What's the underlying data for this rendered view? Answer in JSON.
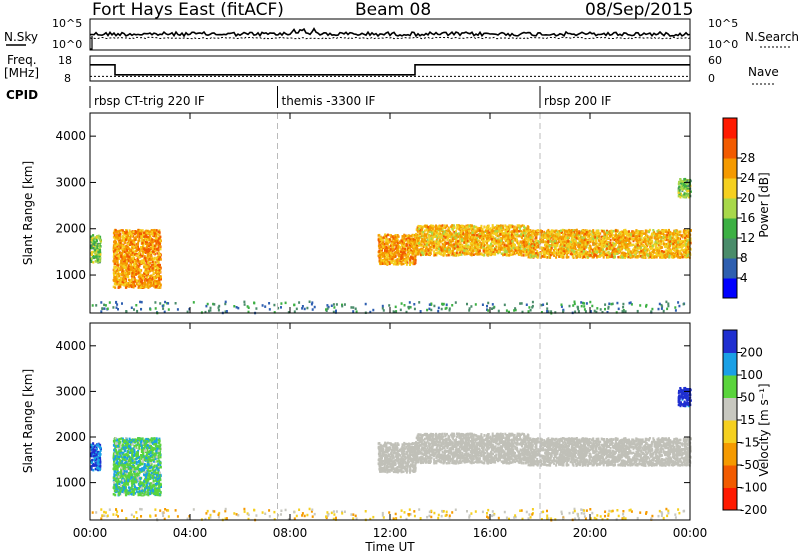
{
  "header": {
    "title": "Fort Hays East (fitACF)",
    "beam": "Beam 08",
    "date": "08/Sep/2015"
  },
  "noise_panel": {
    "left_label": "N.Sky",
    "left_top_tick": "10^5",
    "left_bottom_tick": "10^0",
    "right_top_tick": "10^5",
    "right_bottom_tick": "10^0",
    "right_label": "N.Search"
  },
  "freq_panel": {
    "left_label_line1": "Freq.",
    "left_label_line2": "[MHz]",
    "left_top_tick": "18",
    "left_bottom_tick": "8",
    "right_top_tick": "60",
    "right_bottom_tick": "0",
    "right_label": "Nave"
  },
  "cpid_panel": {
    "label": "CPID",
    "modes": [
      {
        "name": "rbsp CT-trig 220 IF",
        "start_hour": 0.0
      },
      {
        "name": "themis -3300 IF",
        "start_hour": 7.5
      },
      {
        "name": "rbsp 200 IF",
        "start_hour": 18.0
      }
    ]
  },
  "x_axis": {
    "label": "Time UT",
    "ticks": [
      "00:00",
      "04:00",
      "08:00",
      "12:00",
      "16:00",
      "20:00",
      "00:00"
    ],
    "range_hours": [
      0,
      24
    ]
  },
  "power_panel": {
    "ylabel": "Slant Range [km]",
    "yticks": [
      "1000",
      "2000",
      "3000",
      "4000"
    ],
    "colorbar_label": "Power [dB]",
    "colorbar_ticks": [
      "4",
      "8",
      "12",
      "16",
      "20",
      "24",
      "28"
    ],
    "colors": [
      "#0000ff",
      "#2e5fb0",
      "#4a8c6a",
      "#3cb043",
      "#a8d84a",
      "#f5d020",
      "#f59a00",
      "#f25b00",
      "#ff1a00"
    ]
  },
  "velocity_panel": {
    "ylabel": "Slant Range [km]",
    "yticks": [
      "1000",
      "2000",
      "3000",
      "4000"
    ],
    "colorbar_label": "Velocity [m s⁻¹]",
    "colorbar_ticks": [
      "200",
      "100",
      "50",
      "15",
      "-15",
      "-50",
      "-100",
      "-200"
    ],
    "colors": [
      "#1f2fd0",
      "#1aa0e6",
      "#5ad43c",
      "#c8c8c0",
      "#f5d020",
      "#f59a00",
      "#f25b00",
      "#ff1a00"
    ],
    "ground_scatter_color": "#c0c0b8"
  },
  "chart_data": {
    "type": "heatmap",
    "title": "Fort Hays East (fitACF)",
    "xlabel": "Time UT",
    "ylabel": "Slant Range [km]",
    "x_range_hours": [
      0,
      24
    ],
    "y_range_km": [
      180,
      4500
    ],
    "noise_sky_level": "~10^2",
    "freq_segments_mhz": [
      {
        "start_hour": 0.0,
        "end_hour": 1.0,
        "value": 14.5
      },
      {
        "start_hour": 1.0,
        "end_hour": 13.0,
        "value": 10.5
      },
      {
        "start_hour": 13.0,
        "end_hour": 24.0,
        "value": 14.5
      }
    ],
    "nave_level": 11,
    "cpid_boundaries_hours": [
      7.5,
      18.0
    ],
    "echo_regions": [
      {
        "start_hour": 0.0,
        "end_hour": 0.4,
        "range_km": [
          1300,
          1900
        ],
        "power_db": 14,
        "velocity": 150
      },
      {
        "start_hour": 0.9,
        "end_hour": 2.8,
        "range_km": [
          750,
          2000
        ],
        "power_db": 24,
        "velocity": 60
      },
      {
        "start_hour": 11.5,
        "end_hour": 13.0,
        "range_km": [
          1250,
          1900
        ],
        "power_db": 24,
        "velocity": 0
      },
      {
        "start_hour": 13.0,
        "end_hour": 17.5,
        "range_km": [
          1450,
          2100
        ],
        "power_db": 22,
        "velocity": 0
      },
      {
        "start_hour": 17.5,
        "end_hour": 24.0,
        "range_km": [
          1400,
          2000
        ],
        "power_db": 22,
        "velocity": 0
      },
      {
        "start_hour": 23.5,
        "end_hour": 24.0,
        "range_km": [
          2700,
          3100
        ],
        "power_db": 14,
        "velocity": 180
      },
      {
        "start_hour": 0.0,
        "end_hour": 24.0,
        "range_km": [
          200,
          450
        ],
        "power_db": 8,
        "velocity": -20
      }
    ]
  }
}
